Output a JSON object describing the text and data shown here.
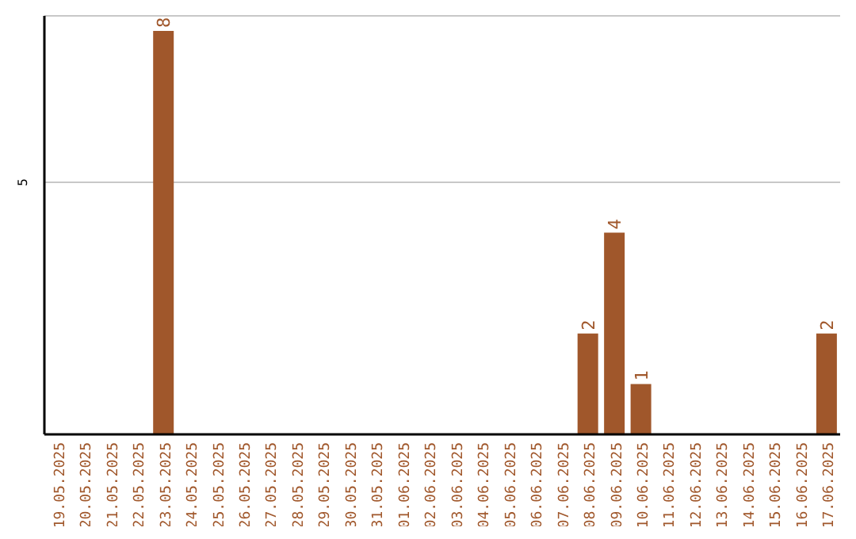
{
  "chart_data": {
    "type": "bar",
    "categories": [
      "19.05.2025",
      "20.05.2025",
      "21.05.2025",
      "22.05.2025",
      "23.05.2025",
      "24.05.2025",
      "25.05.2025",
      "26.05.2025",
      "27.05.2025",
      "28.05.2025",
      "29.05.2025",
      "30.05.2025",
      "31.05.2025",
      "01.06.2025",
      "02.06.2025",
      "03.06.2025",
      "04.06.2025",
      "05.06.2025",
      "06.06.2025",
      "07.06.2025",
      "08.06.2025",
      "09.06.2025",
      "10.06.2025",
      "11.06.2025",
      "12.06.2025",
      "13.06.2025",
      "14.06.2025",
      "15.06.2025",
      "16.06.2025",
      "17.06.2025"
    ],
    "values": [
      0,
      0,
      0,
      0,
      8,
      0,
      0,
      0,
      0,
      0,
      0,
      0,
      0,
      0,
      0,
      0,
      0,
      0,
      0,
      0,
      2,
      4,
      1,
      0,
      0,
      0,
      0,
      0,
      0,
      2
    ],
    "value_labels": [
      null,
      null,
      null,
      null,
      "8",
      null,
      null,
      null,
      null,
      null,
      null,
      null,
      null,
      null,
      null,
      null,
      null,
      null,
      null,
      null,
      "2",
      "4",
      "1",
      null,
      null,
      null,
      null,
      null,
      null,
      "2"
    ],
    "color": "#a0572b",
    "ylim": [
      0,
      8.3
    ],
    "yticks": [
      5
    ],
    "grid": "y"
  }
}
